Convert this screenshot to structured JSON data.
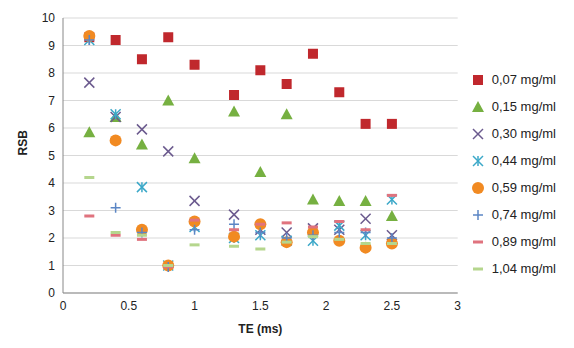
{
  "chart_data": {
    "type": "scatter",
    "x_label": "TE (ms)",
    "y_label": "RSB",
    "x": [
      0.2,
      0.4,
      0.6,
      0.8,
      1.0,
      1.3,
      1.5,
      1.7,
      1.9,
      2.1,
      2.3,
      2.5
    ],
    "xlim": [
      0,
      3
    ],
    "xticks": [
      0,
      0.5,
      1,
      1.5,
      2,
      2.5,
      3
    ],
    "ylim": [
      0,
      10
    ],
    "yticks": [
      0,
      1,
      2,
      3,
      4,
      5,
      6,
      7,
      8,
      9,
      10
    ],
    "grid": true,
    "legend": "right",
    "series": [
      {
        "name": "0,07 mg/ml",
        "color": "#c0282d",
        "marker": "square",
        "values": [
          9.3,
          9.2,
          8.5,
          9.3,
          8.3,
          7.2,
          8.1,
          7.6,
          8.7,
          7.3,
          6.15,
          6.15
        ]
      },
      {
        "name": "0,15 mg/ml",
        "color": "#76b041",
        "marker": "triangle",
        "values": [
          5.85,
          6.4,
          5.4,
          7.0,
          4.9,
          6.6,
          4.4,
          6.5,
          3.4,
          3.35,
          3.35,
          2.8
        ]
      },
      {
        "name": "0,30 mg/ml",
        "color": "#6b5a8e",
        "marker": "x",
        "values": [
          7.65,
          6.4,
          5.95,
          5.15,
          3.35,
          2.85,
          2.3,
          2.2,
          2.35,
          2.3,
          2.7,
          2.1
        ]
      },
      {
        "name": "0,44 mg/ml",
        "color": "#3ba8c8",
        "marker": "asterisk",
        "values": [
          9.2,
          6.5,
          3.85,
          1.0,
          2.4,
          2.0,
          2.1,
          1.9,
          1.9,
          2.45,
          2.1,
          3.4
        ]
      },
      {
        "name": "0,59 mg/ml",
        "color": "#f18a22",
        "marker": "circle",
        "values": [
          9.35,
          5.55,
          2.3,
          1.0,
          2.6,
          2.05,
          2.5,
          1.85,
          2.2,
          1.9,
          1.65,
          1.8
        ]
      },
      {
        "name": "0,74 mg/ml",
        "color": "#5b86c5",
        "marker": "plus",
        "values": [
          9.2,
          3.1,
          2.2,
          0.95,
          2.3,
          2.5,
          2.2,
          2.0,
          2.1,
          2.2,
          2.2,
          2.0
        ]
      },
      {
        "name": "0,89 mg/ml",
        "color": "#e0737e",
        "marker": "dash",
        "values": [
          2.8,
          2.1,
          1.95,
          0.95,
          2.65,
          2.3,
          2.5,
          2.55,
          2.4,
          2.6,
          2.3,
          3.55
        ]
      },
      {
        "name": "1,04 mg/ml",
        "color": "#b5d68d",
        "marker": "dash",
        "values": [
          4.2,
          2.2,
          2.1,
          1.0,
          1.75,
          1.7,
          1.6,
          1.85,
          2.05,
          1.95,
          1.8,
          1.8
        ]
      }
    ]
  }
}
